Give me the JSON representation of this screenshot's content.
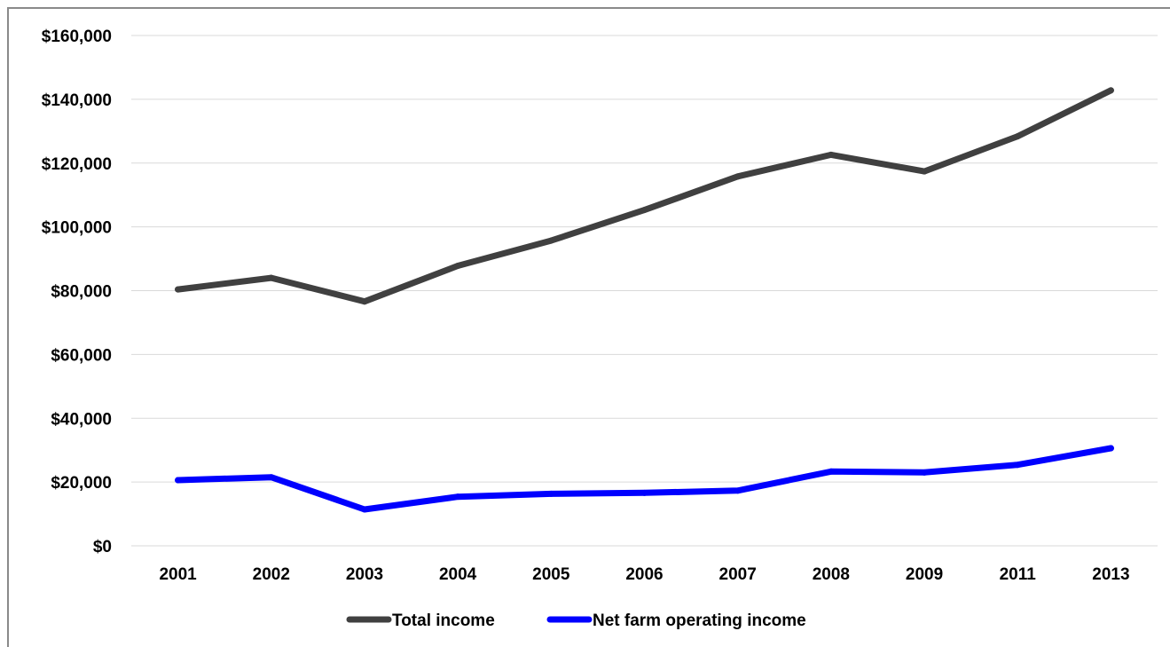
{
  "chart_data": {
    "type": "line",
    "categories": [
      "2001",
      "2002",
      "2003",
      "2004",
      "2005",
      "2006",
      "2007",
      "2008",
      "2009",
      "2011",
      "2013"
    ],
    "series": [
      {
        "name": "Total income",
        "color": "#404040",
        "values": [
          80400,
          84000,
          76600,
          87800,
          95700,
          105300,
          115800,
          122600,
          117400,
          128400,
          142800
        ]
      },
      {
        "name": "Net farm operating income",
        "color": "#0000ff",
        "values": [
          20600,
          21500,
          11400,
          15400,
          16300,
          16600,
          17300,
          23300,
          23000,
          25400,
          30600
        ]
      }
    ],
    "ylim": [
      0,
      160000
    ],
    "yticks": [
      0,
      20000,
      40000,
      60000,
      80000,
      100000,
      120000,
      140000,
      160000
    ],
    "ytick_labels": [
      "$0",
      "$20,000",
      "$40,000",
      "$60,000",
      "$80,000",
      "$100,000",
      "$120,000",
      "$140,000",
      "$160,000"
    ],
    "grid": true,
    "legend": "bottom-center",
    "title": "",
    "xlabel": "",
    "ylabel": ""
  }
}
